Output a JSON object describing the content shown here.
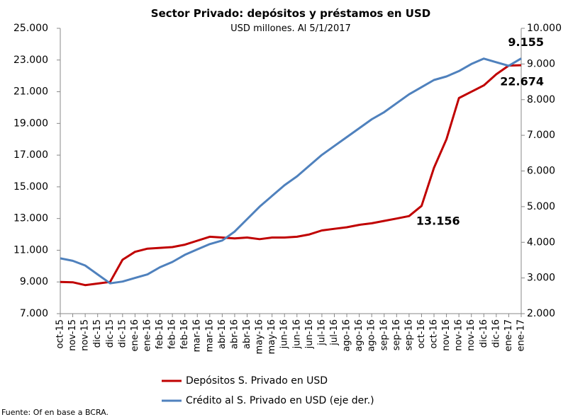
{
  "chart_data": {
    "type": "line",
    "title": "Sector Privado: depósitos y préstamos en USD",
    "subtitle": "USD millones. Al 5/1/2017",
    "source": "Fuente: Of en base a BCRA.",
    "categories": [
      "oct-15",
      "nov-15",
      "nov-15",
      "dic-15",
      "dic-15",
      "dic-15",
      "ene-16",
      "ene-16",
      "feb-16",
      "feb-16",
      "feb-16",
      "mar-16",
      "mar-16",
      "abr-16",
      "abr-16",
      "abr-16",
      "may-16",
      "may-16",
      "jun-16",
      "jun-16",
      "jun-16",
      "jul-16",
      "jul-16",
      "ago-16",
      "ago-16",
      "ago-16",
      "sep-16",
      "sep-16",
      "sep-16",
      "oct-16",
      "oct-16",
      "nov-16",
      "nov-16",
      "nov-16",
      "dic-16",
      "dic-16",
      "ene-17",
      "ene-17"
    ],
    "series": [
      {
        "name": "Depósitos S. Privado en USD",
        "color": "#c00000",
        "axis": "y",
        "values": [
          9000,
          8980,
          8800,
          8900,
          9000,
          10400,
          10900,
          11100,
          11150,
          11200,
          11350,
          11600,
          11850,
          11800,
          11750,
          11800,
          11700,
          11800,
          11800,
          11850,
          12000,
          12250,
          12350,
          12450,
          12600,
          12700,
          12850,
          13000,
          13156,
          13800,
          16200,
          18000,
          20600,
          21000,
          21400,
          22100,
          22650,
          22674
        ],
        "value_labels": [
          null,
          null,
          null,
          null,
          null,
          null,
          null,
          null,
          null,
          null,
          null,
          null,
          null,
          null,
          null,
          null,
          null,
          null,
          null,
          null,
          null,
          null,
          null,
          null,
          null,
          null,
          null,
          null,
          "13.156",
          null,
          null,
          null,
          null,
          null,
          null,
          null,
          null,
          "22.674"
        ]
      },
      {
        "name": "Crédito al S. Privado en USD (eje der.)",
        "color": "#4f81bd",
        "axis": "y2",
        "values": [
          3550,
          3480,
          3350,
          3100,
          2850,
          2900,
          3000,
          3100,
          3300,
          3450,
          3650,
          3800,
          3950,
          4050,
          4300,
          4650,
          5000,
          5300,
          5600,
          5850,
          6150,
          6450,
          6700,
          6950,
          7200,
          7450,
          7650,
          7900,
          8150,
          8350,
          8550,
          8650,
          8800,
          9000,
          9150,
          9050,
          8950,
          9155
        ],
        "value_labels": [
          null,
          null,
          null,
          null,
          null,
          null,
          null,
          null,
          null,
          null,
          null,
          null,
          null,
          null,
          null,
          null,
          null,
          null,
          null,
          null,
          null,
          null,
          null,
          null,
          null,
          null,
          null,
          null,
          null,
          null,
          null,
          null,
          null,
          null,
          null,
          null,
          null,
          "9.155"
        ]
      }
    ],
    "ylim": [
      7000,
      25000
    ],
    "yticks": [
      {
        "value": 7000,
        "label": "7.000"
      },
      {
        "value": 9000,
        "label": "9.000"
      },
      {
        "value": 11000,
        "label": "11.000"
      },
      {
        "value": 13000,
        "label": "13.000"
      },
      {
        "value": 15000,
        "label": "15.000"
      },
      {
        "value": 17000,
        "label": "17.000"
      },
      {
        "value": 19000,
        "label": "19.000"
      },
      {
        "value": 21000,
        "label": "21.000"
      },
      {
        "value": 23000,
        "label": "23.000"
      },
      {
        "value": 25000,
        "label": "25.000"
      }
    ],
    "y2lim": [
      2000,
      10000
    ],
    "y2ticks": [
      {
        "value": 2000,
        "label": "2.000"
      },
      {
        "value": 3000,
        "label": "3.000"
      },
      {
        "value": 4000,
        "label": "4.000"
      },
      {
        "value": 5000,
        "label": "5.000"
      },
      {
        "value": 6000,
        "label": "6.000"
      },
      {
        "value": 7000,
        "label": "7.000"
      },
      {
        "value": 8000,
        "label": "8.000"
      },
      {
        "value": 9000,
        "label": "9.000"
      },
      {
        "value": 10000,
        "label": "10.000"
      }
    ],
    "grid": false,
    "legend": "bottom"
  }
}
